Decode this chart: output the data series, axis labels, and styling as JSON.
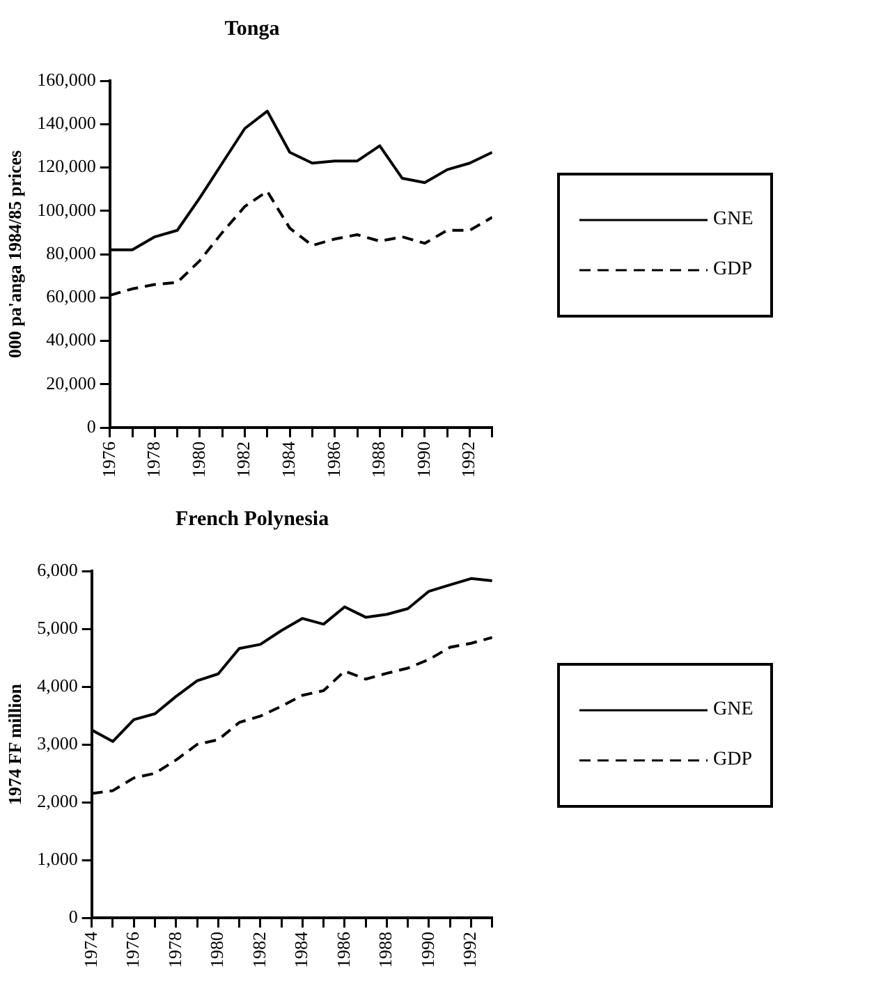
{
  "chart_data": [
    {
      "type": "line",
      "title": "Tonga",
      "ylabel": "000 pa'anga 1984/85 prices",
      "x": [
        1976,
        1977,
        1978,
        1979,
        1980,
        1981,
        1982,
        1983,
        1984,
        1985,
        1986,
        1987,
        1988,
        1989,
        1990,
        1991,
        1992,
        1993
      ],
      "series": [
        {
          "name": "GNE",
          "color": "#000000",
          "line_style": "solid",
          "values": [
            82000,
            82000,
            88000,
            91000,
            106000,
            122000,
            138000,
            146000,
            127000,
            122000,
            123000,
            123000,
            130000,
            115000,
            113000,
            119000,
            122000,
            127000
          ]
        },
        {
          "name": "GDP",
          "color": "#000000",
          "line_style": "dashed",
          "values": [
            61000,
            64000,
            66000,
            67000,
            77000,
            90000,
            102000,
            109000,
            92000,
            84000,
            87000,
            89000,
            86000,
            88000,
            85000,
            91000,
            91000,
            97000
          ]
        }
      ],
      "xlim": [
        1976,
        1993
      ],
      "xticks": [
        1976,
        {
          "value": 1977,
          "label": null
        },
        1978,
        {
          "value": 1979,
          "label": null
        },
        1980,
        {
          "value": 1981,
          "label": null
        },
        1982,
        {
          "value": 1983,
          "label": null
        },
        1984,
        {
          "value": 1985,
          "label": null
        },
        1986,
        {
          "value": 1987,
          "label": null
        },
        1988,
        {
          "value": 1989,
          "label": null
        },
        1990,
        {
          "value": 1991,
          "label": null
        },
        1992,
        {
          "value": 1993,
          "label": null
        }
      ],
      "ylim": [
        0,
        160000
      ],
      "yticks": [
        {
          "value": 0,
          "label": "0"
        },
        {
          "value": 20000,
          "label": "20,000"
        },
        {
          "value": 40000,
          "label": "40,000"
        },
        {
          "value": 60000,
          "label": "60,000"
        },
        {
          "value": 80000,
          "label": "80,000"
        },
        {
          "value": 100000,
          "label": "100,000"
        },
        {
          "value": 120000,
          "label": "120,000"
        },
        {
          "value": 140000,
          "label": "140,000"
        },
        {
          "value": 160000,
          "label": "160,000"
        }
      ],
      "grid": false,
      "legend": "right",
      "marker": "none"
    },
    {
      "type": "line",
      "title": "French Polynesia",
      "ylabel": "1974 FF million",
      "x": [
        1974,
        1975,
        1976,
        1977,
        1978,
        1979,
        1980,
        1981,
        1982,
        1983,
        1984,
        1985,
        1986,
        1987,
        1988,
        1989,
        1990,
        1991,
        1992,
        1993
      ],
      "series": [
        {
          "name": "GNE",
          "color": "#000000",
          "line_style": "solid",
          "values": [
            3250,
            3050,
            3430,
            3530,
            3830,
            4100,
            4220,
            4660,
            4730,
            4970,
            5180,
            5080,
            5380,
            5200,
            5250,
            5350,
            5650,
            5760,
            5870,
            5830
          ]
        },
        {
          "name": "GDP",
          "color": "#000000",
          "line_style": "dashed",
          "values": [
            2150,
            2200,
            2420,
            2500,
            2730,
            3000,
            3080,
            3380,
            3490,
            3660,
            3850,
            3930,
            4270,
            4130,
            4230,
            4320,
            4470,
            4680,
            4750,
            4850
          ]
        }
      ],
      "xlim": [
        1974,
        1993
      ],
      "xticks": [
        1974,
        {
          "value": 1975,
          "label": null
        },
        1976,
        {
          "value": 1977,
          "label": null
        },
        1978,
        {
          "value": 1979,
          "label": null
        },
        1980,
        {
          "value": 1981,
          "label": null
        },
        1982,
        {
          "value": 1983,
          "label": null
        },
        1984,
        {
          "value": 1985,
          "label": null
        },
        1986,
        {
          "value": 1987,
          "label": null
        },
        1988,
        {
          "value": 1989,
          "label": null
        },
        1990,
        {
          "value": 1991,
          "label": null
        },
        1992,
        {
          "value": 1993,
          "label": null
        }
      ],
      "ylim": [
        0,
        6000
      ],
      "yticks": [
        {
          "value": 0,
          "label": "0"
        },
        {
          "value": 1000,
          "label": "1,000"
        },
        {
          "value": 2000,
          "label": "2,000"
        },
        {
          "value": 3000,
          "label": "3,000"
        },
        {
          "value": 4000,
          "label": "4,000"
        },
        {
          "value": 5000,
          "label": "5,000"
        },
        {
          "value": 6000,
          "label": "6,000"
        }
      ],
      "grid": false,
      "legend": "right",
      "marker": "none"
    }
  ]
}
